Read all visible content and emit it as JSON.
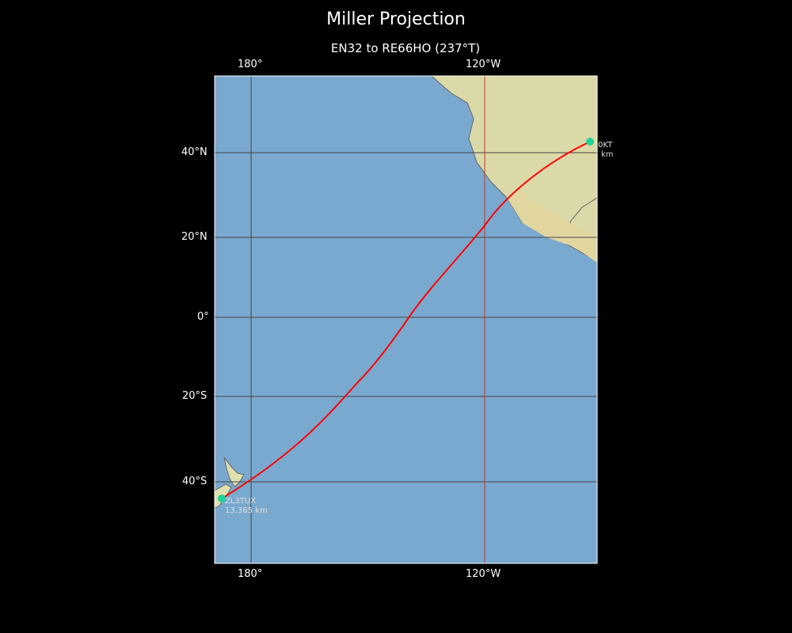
{
  "title": "Miller Projection",
  "subtitle": "EN32 to RE66HO (237°T)",
  "lon_ticks": [
    "180°",
    "120°W"
  ],
  "lat_ticks": [
    "40°N",
    "20°N",
    "0°",
    "20°S",
    "40°S"
  ],
  "stations": {
    "start": {
      "call_visible": "0KT",
      "dist_visible": "km"
    },
    "end": {
      "call": "ZL3TUX",
      "dist": "13,365 km"
    }
  },
  "colors": {
    "ocean": "#7aa9cf",
    "land": "#e3e0b0",
    "path": "#ff0000",
    "marker": "#1fd39a",
    "grid": "#444444",
    "meridian_highlight": "#c0392b"
  }
}
